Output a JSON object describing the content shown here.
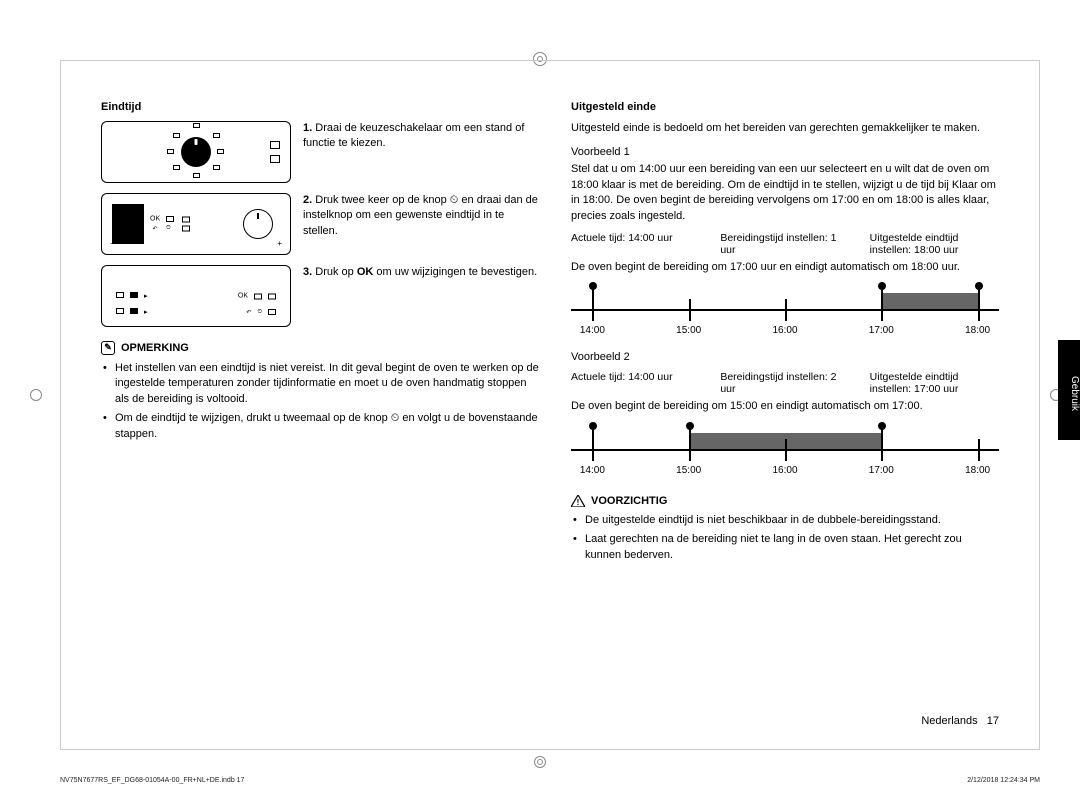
{
  "left": {
    "title": "Eindtijd",
    "steps": [
      {
        "num": "1.",
        "text": "Draai de keuzeschakelaar om een stand of functie te kiezen."
      },
      {
        "num": "2.",
        "text": "Druk twee keer op de knop ⏲ en draai dan de instelknop om een gewenste eindtijd in te stellen."
      },
      {
        "num": "3.",
        "text": "Druk op OK om uw wijzigingen te bevestigen."
      }
    ],
    "panel2_ok": "OK",
    "panel3_ok": "OK",
    "note_title": "OPMERKING",
    "note_items": [
      "Het instellen van een eindtijd is niet vereist. In dit geval begint de oven te werken op de ingestelde temperaturen zonder tijdinformatie en moet u de oven handmatig stoppen als de bereiding is voltooid.",
      "Om de eindtijd te wijzigen, drukt u tweemaal op de knop ⏲ en volgt u de bovenstaande stappen."
    ]
  },
  "right": {
    "title": "Uitgesteld einde",
    "intro": "Uitgesteld einde is bedoeld om het bereiden van gerechten gemakkelijker te maken.",
    "ex1_title": "Voorbeeld 1",
    "ex1_desc": "Stel dat u om 14:00 uur een bereiding van een uur selecteert en u wilt dat de oven om 18:00 klaar is met de bereiding. Om de eindtijd in te stellen, wijzigt u de tijd bij Klaar om in 18:00. De oven begint de bereiding vervolgens om 17:00 en om 18:00 is alles klaar, precies zoals ingesteld.",
    "ex1_info": {
      "a": "Actuele tijd: 14:00 uur",
      "b": "Bereidingstijd instellen: 1 uur",
      "c": "Uitgestelde eindtijd instellen: 18:00 uur"
    },
    "ex1_result": "De oven begint de bereiding om 17:00 uur en eindigt automatisch om 18:00 uur.",
    "timeline1": {
      "labels": [
        "14:00",
        "15:00",
        "16:00",
        "17:00",
        "18:00"
      ],
      "positions_pct": [
        5,
        27.5,
        50,
        72.5,
        95
      ],
      "bar_start_pct": 72.5,
      "bar_end_pct": 95,
      "dots_pct": [
        5,
        72.5,
        95
      ],
      "bar_color": "#666666"
    },
    "ex2_title": "Voorbeeld 2",
    "ex2_info": {
      "a": "Actuele tijd: 14:00 uur",
      "b": "Bereidingstijd instellen: 2 uur",
      "c": "Uitgestelde eindtijd instellen: 17:00 uur"
    },
    "ex2_result": "De oven begint de bereiding om 15:00 en eindigt automatisch om 17:00.",
    "timeline2": {
      "labels": [
        "14:00",
        "15:00",
        "16:00",
        "17:00",
        "18:00"
      ],
      "positions_pct": [
        5,
        27.5,
        50,
        72.5,
        95
      ],
      "bar_start_pct": 27.5,
      "bar_end_pct": 72.5,
      "dots_pct": [
        5,
        27.5,
        72.5
      ],
      "bar_color": "#666666"
    },
    "caution_title": "VOORZICHTIG",
    "caution_items": [
      "De uitgestelde eindtijd is niet beschikbaar in de dubbele-bereidingsstand.",
      "Laat gerechten na de bereiding niet te lang in de oven staan. Het gerecht zou kunnen bederven."
    ]
  },
  "sidebar": "Gebruik",
  "footer_lang": "Nederlands",
  "footer_page": "17",
  "tiny_left": "NV75N7677RS_EF_DG68-01054A-00_FR+NL+DE.indb   17",
  "tiny_right": "2/12/2018   12:24:34 PM"
}
